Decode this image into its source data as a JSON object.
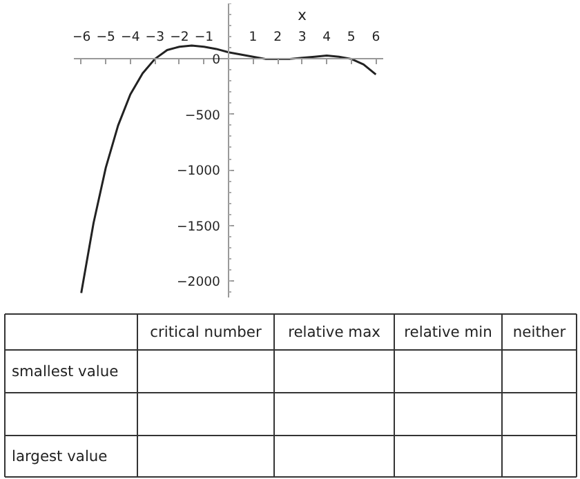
{
  "chart_data": [
    {
      "type": "line",
      "xlabel": "x",
      "x": [
        -6,
        -5.5,
        -5,
        -4.5,
        -4,
        -3.5,
        -3,
        -2.5,
        -2,
        -1.5,
        -1,
        -0.5,
        0,
        0.5,
        1,
        1.5,
        2,
        2.5,
        3,
        3.5,
        4,
        4.5,
        5,
        5.5,
        6
      ],
      "series": [
        {
          "color": "#222222",
          "values": [
            -2110,
            -1480,
            -980,
            -600,
            -320,
            -130,
            0,
            80,
            110,
            120,
            110,
            90,
            60,
            40,
            20,
            0,
            0,
            0,
            10,
            20,
            30,
            20,
            0,
            -50,
            -140
          ]
        }
      ],
      "xlim": [
        -6.3,
        6.3
      ],
      "ylim": [
        -2150,
        500
      ],
      "xticks": [
        -6,
        -5,
        -4,
        -3,
        -2,
        -1,
        1,
        2,
        3,
        4,
        5,
        6
      ],
      "yticks": [
        -2000,
        -1500,
        -1000,
        -500,
        0
      ],
      "grid": false,
      "marker": "none",
      "line_style": "solid"
    },
    {
      "type": "other",
      "categories": [
        null,
        "critical number",
        "relative max",
        "relative min",
        "neither"
      ],
      "y_categories": [
        "smallest value",
        null,
        "largest value"
      ]
    }
  ]
}
